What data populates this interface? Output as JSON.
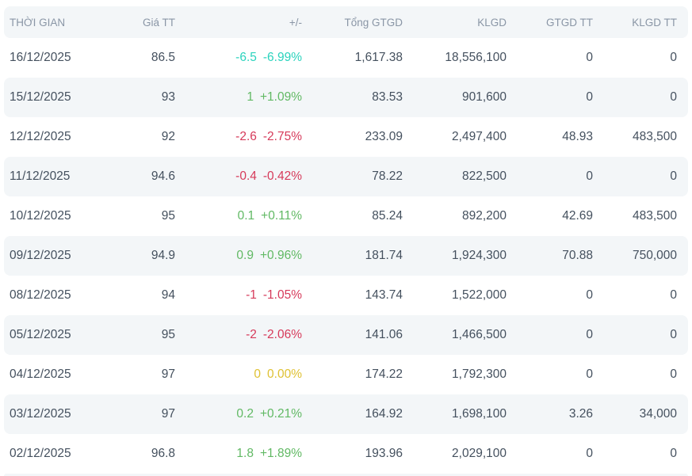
{
  "colors": {
    "up": "#61b964",
    "down": "#d63a5a",
    "reference": "#dfc133",
    "floor": "#2bd3bd",
    "header_text": "#8a96a6",
    "body_text": "#44505e",
    "band_bg": "#f3f6f8"
  },
  "table": {
    "columns": [
      {
        "key": "date",
        "label": "THỜI GIAN"
      },
      {
        "key": "price",
        "label": "Giá TT"
      },
      {
        "key": "change",
        "label": "+/-"
      },
      {
        "key": "total_value",
        "label": "Tổng GTGD"
      },
      {
        "key": "volume",
        "label": "KLGD"
      },
      {
        "key": "value_tt",
        "label": "GTGD TT"
      },
      {
        "key": "volume_tt",
        "label": "KLGD TT"
      }
    ],
    "rows": [
      {
        "date": "16/12/2025",
        "price": "86.5",
        "change": "-6.5",
        "change_pct": "-6.99%",
        "trend": "floor",
        "total_value": "1,617.38",
        "volume": "18,556,100",
        "value_tt": "0",
        "volume_tt": "0"
      },
      {
        "date": "15/12/2025",
        "price": "93",
        "change": "1",
        "change_pct": "+1.09%",
        "trend": "up",
        "total_value": "83.53",
        "volume": "901,600",
        "value_tt": "0",
        "volume_tt": "0"
      },
      {
        "date": "12/12/2025",
        "price": "92",
        "change": "-2.6",
        "change_pct": "-2.75%",
        "trend": "down",
        "total_value": "233.09",
        "volume": "2,497,400",
        "value_tt": "48.93",
        "volume_tt": "483,500"
      },
      {
        "date": "11/12/2025",
        "price": "94.6",
        "change": "-0.4",
        "change_pct": "-0.42%",
        "trend": "down",
        "total_value": "78.22",
        "volume": "822,500",
        "value_tt": "0",
        "volume_tt": "0"
      },
      {
        "date": "10/12/2025",
        "price": "95",
        "change": "0.1",
        "change_pct": "+0.11%",
        "trend": "up",
        "total_value": "85.24",
        "volume": "892,200",
        "value_tt": "42.69",
        "volume_tt": "483,500"
      },
      {
        "date": "09/12/2025",
        "price": "94.9",
        "change": "0.9",
        "change_pct": "+0.96%",
        "trend": "up",
        "total_value": "181.74",
        "volume": "1,924,300",
        "value_tt": "70.88",
        "volume_tt": "750,000"
      },
      {
        "date": "08/12/2025",
        "price": "94",
        "change": "-1",
        "change_pct": "-1.05%",
        "trend": "down",
        "total_value": "143.74",
        "volume": "1,522,000",
        "value_tt": "0",
        "volume_tt": "0"
      },
      {
        "date": "05/12/2025",
        "price": "95",
        "change": "-2",
        "change_pct": "-2.06%",
        "trend": "down",
        "total_value": "141.06",
        "volume": "1,466,500",
        "value_tt": "0",
        "volume_tt": "0"
      },
      {
        "date": "04/12/2025",
        "price": "97",
        "change": "0",
        "change_pct": "0.00%",
        "trend": "reference",
        "total_value": "174.22",
        "volume": "1,792,300",
        "value_tt": "0",
        "volume_tt": "0"
      },
      {
        "date": "03/12/2025",
        "price": "97",
        "change": "0.2",
        "change_pct": "+0.21%",
        "trend": "up",
        "total_value": "164.92",
        "volume": "1,698,100",
        "value_tt": "3.26",
        "volume_tt": "34,000"
      },
      {
        "date": "02/12/2025",
        "price": "96.8",
        "change": "1.8",
        "change_pct": "+1.89%",
        "trend": "up",
        "total_value": "193.96",
        "volume": "2,029,100",
        "value_tt": "0",
        "volume_tt": "0"
      }
    ]
  }
}
